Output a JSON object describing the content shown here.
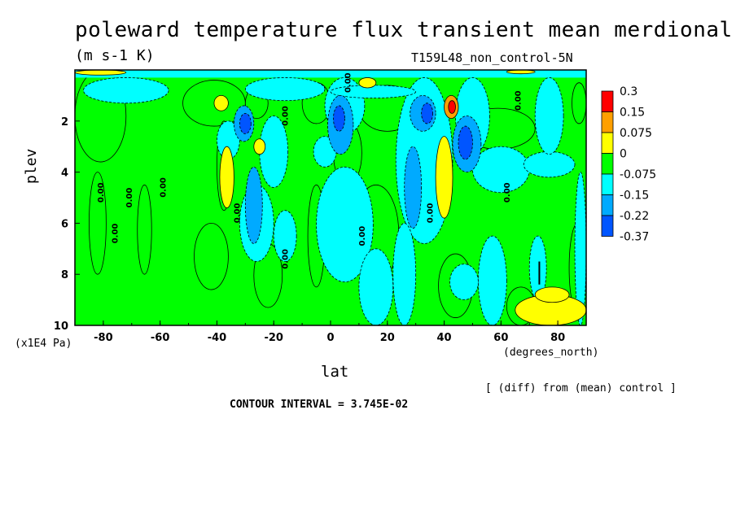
{
  "chart_data": {
    "type": "heatmap",
    "title": "poleward temperature flux transient mean merdional",
    "units_label": "(m s-1 K)",
    "dataset_label": "T159L48_non_control-5N",
    "xlabel": "lat",
    "xunit": "(degrees_north)",
    "ylabel": "plev",
    "yunit": "(x1E4 Pa)",
    "note": "[ (diff) from (mean) control ]",
    "contour_interval": "CONTOUR INTERVAL = 3.745E-02",
    "xlim": [
      -90,
      90
    ],
    "ylim": [
      10,
      0
    ],
    "x_ticks": [
      "-80",
      "-60",
      "-40",
      "-20",
      "0",
      "20",
      "40",
      "60",
      "80"
    ],
    "x_tick_values": [
      -80,
      -60,
      -40,
      -20,
      0,
      20,
      40,
      60,
      80
    ],
    "y_ticks": [
      "2",
      "4",
      "6",
      "8",
      "10"
    ],
    "y_tick_values": [
      2,
      4,
      6,
      8,
      10
    ],
    "contour_labels": [
      "0.00",
      "0.00",
      "0.00",
      "0.00",
      "0.00",
      "0.00",
      "0.00",
      "0.00",
      "0.00",
      "0.00",
      "0.00",
      "0.00"
    ],
    "contour_label_positions": [
      [
        -80,
        4.8
      ],
      [
        -70,
        5.0
      ],
      [
        -58,
        4.6
      ],
      [
        -75,
        6.4
      ],
      [
        -32,
        5.6
      ],
      [
        -15,
        7.4
      ],
      [
        -15,
        1.8
      ],
      [
        7,
        0.5
      ],
      [
        12,
        6.5
      ],
      [
        36,
        5.6
      ],
      [
        63,
        4.8
      ],
      [
        67,
        1.2
      ]
    ],
    "legend": {
      "levels": [
        "0.3",
        "0.15",
        "0.075",
        "0",
        "-0.075",
        "-0.15",
        "-0.22",
        "-0.37"
      ],
      "colors": [
        "#ff0000",
        "#ff9f00",
        "#ffff00",
        "#00ff00",
        "#00ffff",
        "#00aaff",
        "#0055ff"
      ]
    },
    "regions": [
      {
        "cat": 3,
        "lat": -90,
        "lev": 0.0,
        "w": 180,
        "h": 10.0
      },
      {
        "cat": 3,
        "lat": -90,
        "lev": 0.0,
        "w": 18,
        "h": 3.6
      },
      {
        "cat": 3,
        "lat": -52,
        "lev": 0.4,
        "w": 22,
        "h": 1.8
      },
      {
        "cat": 3,
        "lat": -40,
        "lev": 2.0,
        "w": 5,
        "h": 3.5
      },
      {
        "cat": 3,
        "lat": -30,
        "lev": 0.7,
        "w": 8,
        "h": 1.2
      },
      {
        "cat": 3,
        "lat": -10,
        "lev": 0.5,
        "w": 10,
        "h": 1.6
      },
      {
        "cat": 3,
        "lat": 1,
        "lev": 2.0,
        "w": 10,
        "h": 2.5
      },
      {
        "cat": 3,
        "lat": 10,
        "lev": 0.6,
        "w": 20,
        "h": 1.8
      },
      {
        "cat": 3,
        "lat": 30,
        "lev": 1.5,
        "w": 4,
        "h": 4.8
      },
      {
        "cat": 3,
        "lat": 46,
        "lev": 1.5,
        "w": 26,
        "h": 1.6
      },
      {
        "cat": 3,
        "lat": 85,
        "lev": 0.5,
        "w": 5,
        "h": 1.6
      },
      {
        "cat": 3,
        "lat": -85,
        "lev": 4.0,
        "w": 6,
        "h": 4.0
      },
      {
        "cat": 3,
        "lat": -68,
        "lev": 4.5,
        "w": 5,
        "h": 3.5
      },
      {
        "cat": 3,
        "lat": -48,
        "lev": 6.0,
        "w": 12,
        "h": 2.6
      },
      {
        "cat": 3,
        "lat": -27,
        "lev": 6.8,
        "w": 10,
        "h": 2.5
      },
      {
        "cat": 3,
        "lat": -8,
        "lev": 4.5,
        "w": 6,
        "h": 4.0
      },
      {
        "cat": 3,
        "lat": 8,
        "lev": 4.5,
        "w": 16,
        "h": 3.8
      },
      {
        "cat": 3,
        "lat": 38,
        "lev": 7.2,
        "w": 12,
        "h": 2.5
      },
      {
        "cat": 3,
        "lat": 62,
        "lev": 8.5,
        "w": 10,
        "h": 1.5
      },
      {
        "cat": 3,
        "lat": 84,
        "lev": 6.0,
        "w": 6,
        "h": 3.5
      },
      {
        "cat": 4,
        "lat": -90,
        "lev": 0.0,
        "w": 180,
        "h": 0.3
      },
      {
        "cat": 4,
        "lat": -87,
        "lev": 0.3,
        "w": 30,
        "h": 1.0
      },
      {
        "cat": 4,
        "lat": -30,
        "lev": 0.3,
        "w": 28,
        "h": 0.9
      },
      {
        "cat": 4,
        "lat": -40,
        "lev": 2.0,
        "w": 8,
        "h": 1.5
      },
      {
        "cat": 4,
        "lat": -25,
        "lev": 1.8,
        "w": 10,
        "h": 2.8
      },
      {
        "cat": 4,
        "lat": -32,
        "lev": 4.5,
        "w": 12,
        "h": 3.0
      },
      {
        "cat": 4,
        "lat": -20,
        "lev": 5.5,
        "w": 8,
        "h": 2.0
      },
      {
        "cat": 4,
        "lat": -6,
        "lev": 2.6,
        "w": 8,
        "h": 1.2
      },
      {
        "cat": 4,
        "lat": -2,
        "lev": 0.3,
        "w": 14,
        "h": 2.2
      },
      {
        "cat": 4,
        "lat": -5,
        "lev": 3.8,
        "w": 20,
        "h": 4.5
      },
      {
        "cat": 4,
        "lat": 10,
        "lev": 7.0,
        "w": 12,
        "h": 3.0
      },
      {
        "cat": 4,
        "lat": 23,
        "lev": 0.3,
        "w": 20,
        "h": 6.5
      },
      {
        "cat": 4,
        "lat": 22,
        "lev": 6.0,
        "w": 8,
        "h": 4.0
      },
      {
        "cat": 4,
        "lat": 44,
        "lev": 0.3,
        "w": 12,
        "h": 3.0
      },
      {
        "cat": 4,
        "lat": 50,
        "lev": 3.0,
        "w": 20,
        "h": 1.8
      },
      {
        "cat": 4,
        "lat": 68,
        "lev": 3.2,
        "w": 18,
        "h": 1.0
      },
      {
        "cat": 4,
        "lat": 72,
        "lev": 0.3,
        "w": 10,
        "h": 3.0
      },
      {
        "cat": 4,
        "lat": 42,
        "lev": 7.6,
        "w": 10,
        "h": 1.4
      },
      {
        "cat": 4,
        "lat": 52,
        "lev": 6.5,
        "w": 10,
        "h": 3.5
      },
      {
        "cat": 4,
        "lat": 70,
        "lev": 6.5,
        "w": 6,
        "h": 2.5
      },
      {
        "cat": 4,
        "lat": 86,
        "lev": 4.0,
        "w": 4,
        "h": 6.0
      },
      {
        "cat": 4,
        "lat": 0,
        "lev": 0.6,
        "w": 30,
        "h": 0.5
      },
      {
        "cat": 5,
        "lat": -34,
        "lev": 1.4,
        "w": 7,
        "h": 1.4
      },
      {
        "cat": 5,
        "lat": -30,
        "lev": 3.8,
        "w": 6,
        "h": 3.0
      },
      {
        "cat": 5,
        "lat": -1,
        "lev": 1.0,
        "w": 9,
        "h": 2.3
      },
      {
        "cat": 5,
        "lat": 28,
        "lev": 1.0,
        "w": 9,
        "h": 1.4
      },
      {
        "cat": 5,
        "lat": 26,
        "lev": 3.0,
        "w": 6,
        "h": 3.2
      },
      {
        "cat": 5,
        "lat": 43,
        "lev": 1.8,
        "w": 10,
        "h": 2.2
      },
      {
        "cat": 6,
        "lat": -32,
        "lev": 1.7,
        "w": 4,
        "h": 0.8
      },
      {
        "cat": 6,
        "lat": 1,
        "lev": 1.4,
        "w": 4,
        "h": 1.0
      },
      {
        "cat": 6,
        "lat": 32,
        "lev": 1.3,
        "w": 4,
        "h": 0.8
      },
      {
        "cat": 6,
        "lat": 45,
        "lev": 2.2,
        "w": 5,
        "h": 1.3
      },
      {
        "cat": 2,
        "lat": -39,
        "lev": 3.0,
        "w": 5,
        "h": 2.4
      },
      {
        "cat": 2,
        "lat": 37,
        "lev": 2.6,
        "w": 6,
        "h": 3.2
      },
      {
        "cat": 2,
        "lat": -27,
        "lev": 2.7,
        "w": 4,
        "h": 0.6
      },
      {
        "cat": 2,
        "lat": 65,
        "lev": 8.8,
        "w": 25,
        "h": 1.2
      },
      {
        "cat": 2,
        "lat": 72,
        "lev": 8.5,
        "w": 12,
        "h": 0.6
      },
      {
        "cat": 1,
        "lat": 40,
        "lev": 1.0,
        "w": 5,
        "h": 0.9
      },
      {
        "cat": 0,
        "lat": 41.5,
        "lev": 1.2,
        "w": 2.5,
        "h": 0.5
      },
      {
        "cat": 2,
        "lat": -41,
        "lev": 1.0,
        "w": 5,
        "h": 0.6
      },
      {
        "cat": 2,
        "lat": 10,
        "lev": 0.3,
        "w": 6,
        "h": 0.4
      },
      {
        "cat": 2,
        "lat": -90,
        "lev": 0.0,
        "w": 18,
        "h": 0.2
      },
      {
        "cat": 2,
        "lat": 62,
        "lev": 0.0,
        "w": 10,
        "h": 0.15
      }
    ]
  }
}
